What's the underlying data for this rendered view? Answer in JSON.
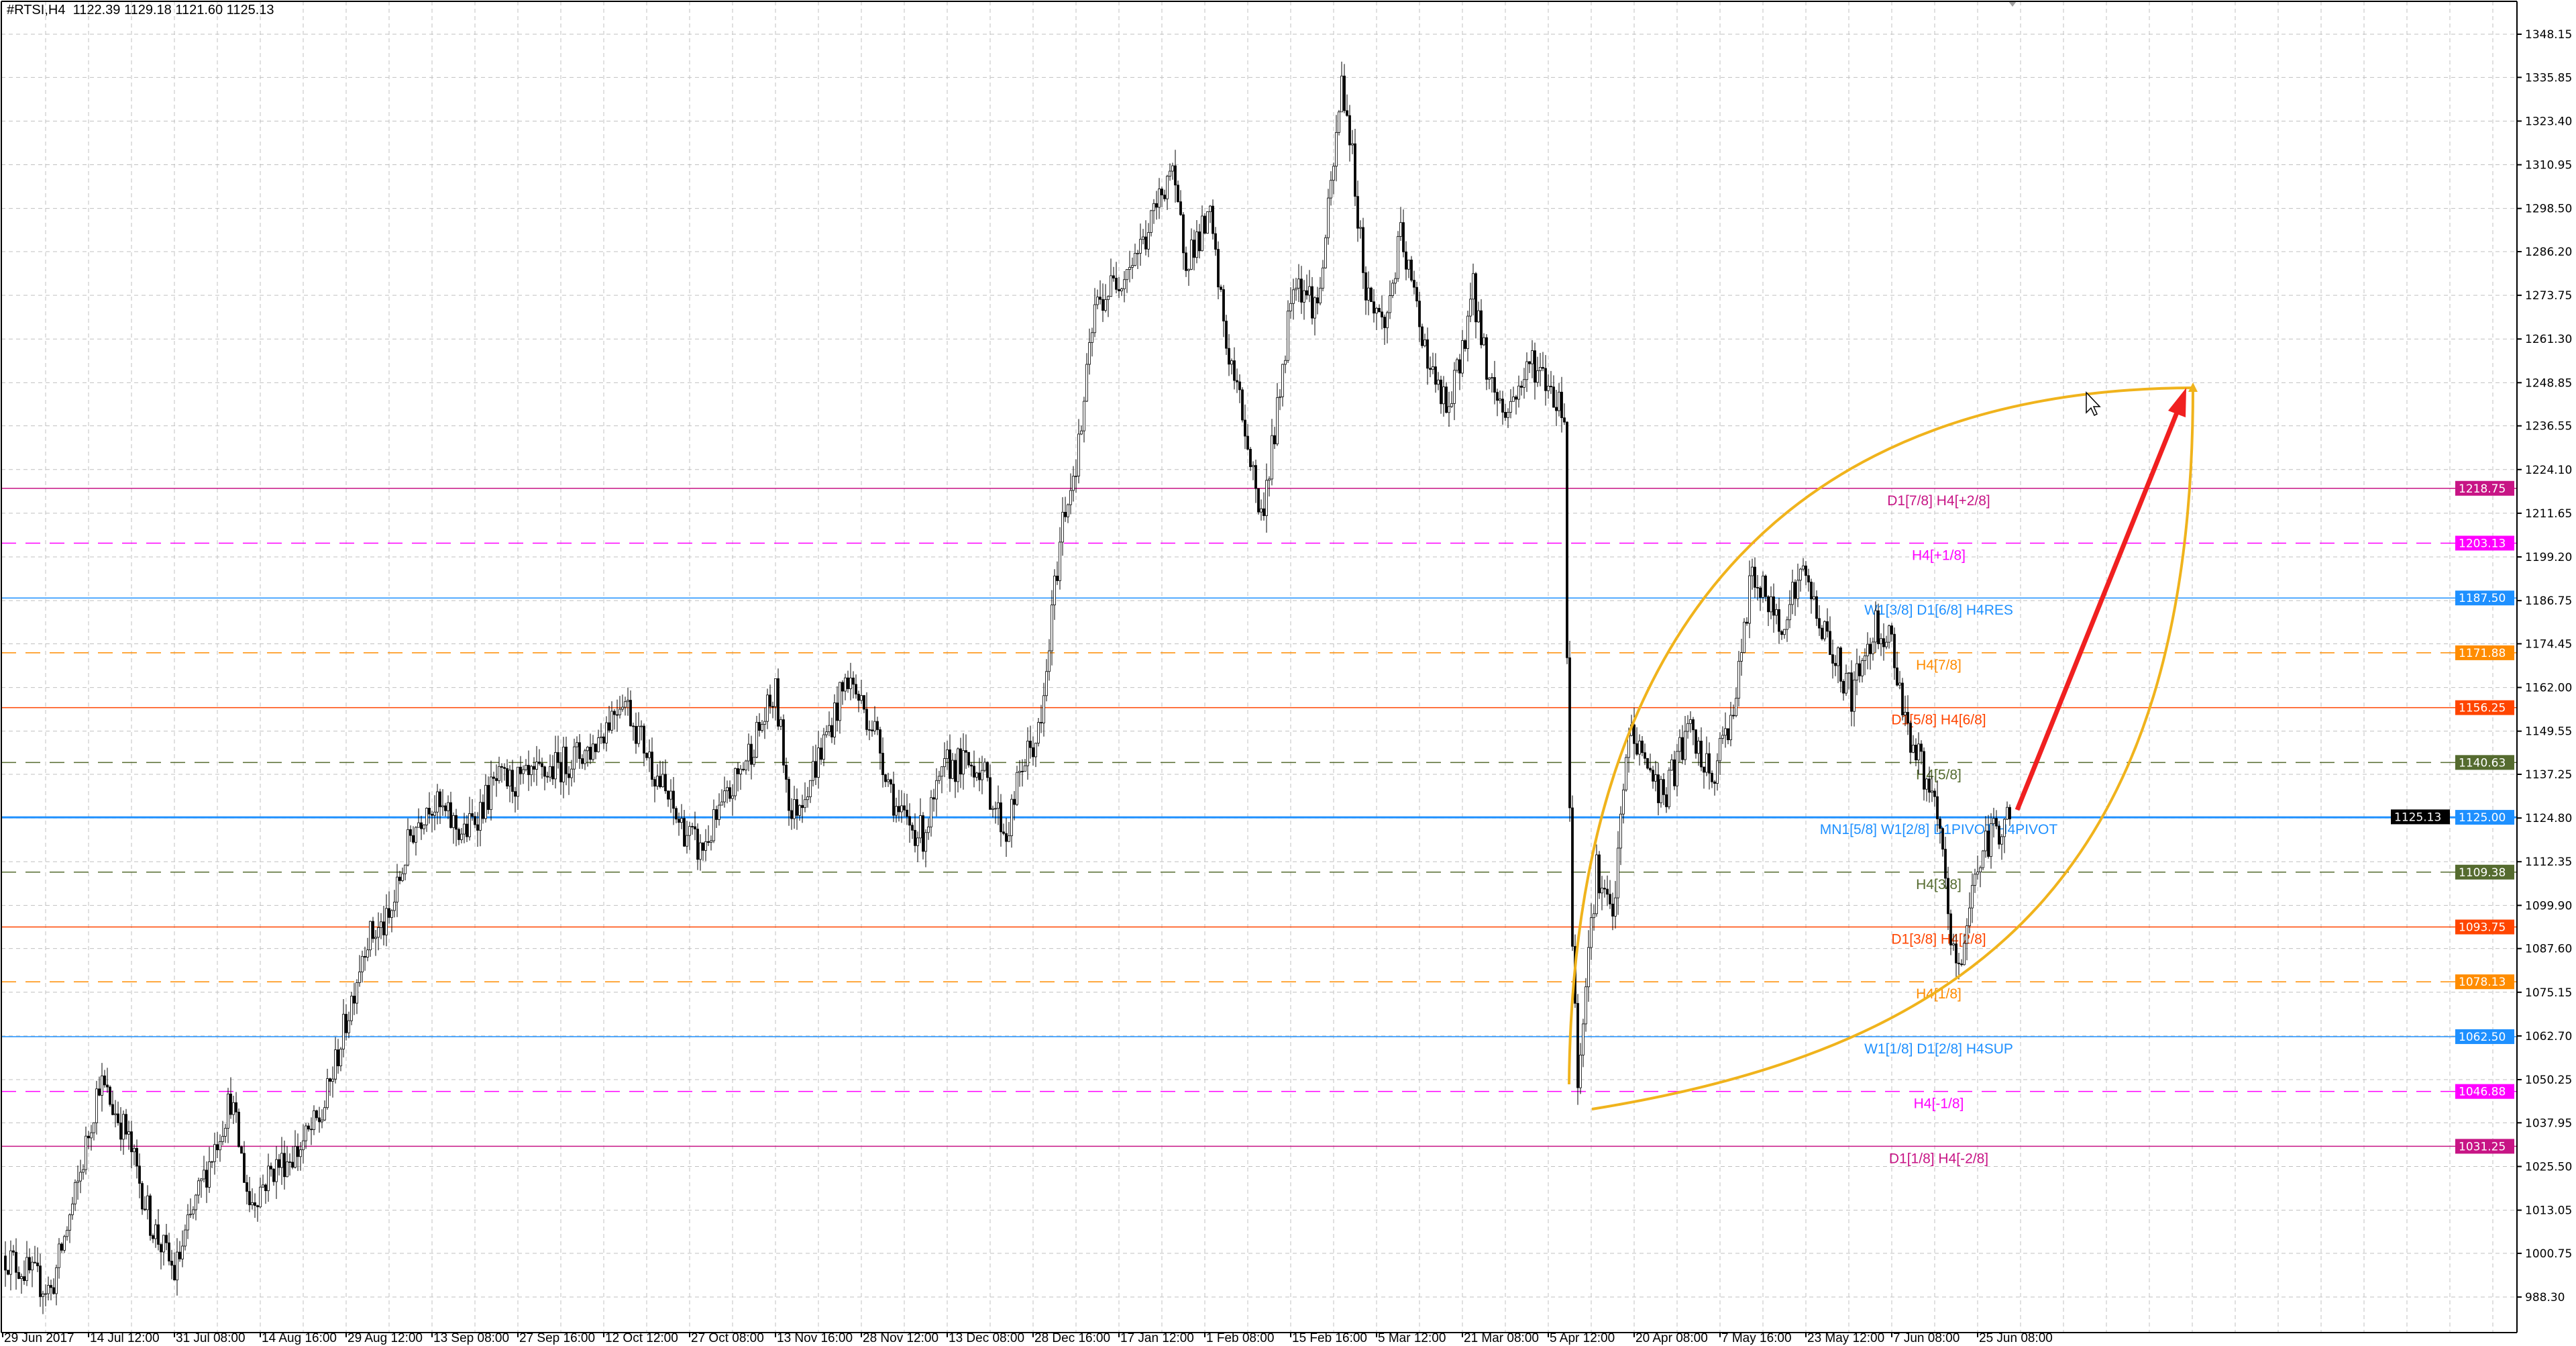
{
  "header": {
    "symbol": "#RTSI,H4",
    "ohlc": "1122.39 1129.18 1121.60 1125.13"
  },
  "colors": {
    "bull": "#ffffff",
    "bear": "#000000",
    "grid": "#c0c0c0",
    "curve": "#f0b31c",
    "arrow": "#f02020"
  },
  "price_axis": {
    "ticks": [
      "1348.15",
      "1335.85",
      "1323.40",
      "1310.95",
      "1298.50",
      "1286.20",
      "1273.75",
      "1261.30",
      "1248.85",
      "1236.55",
      "1224.10",
      "1211.65",
      "1199.20",
      "1186.75",
      "1174.45",
      "1162.00",
      "1149.55",
      "1137.25",
      "1124.80",
      "1112.35",
      "1099.90",
      "1087.60",
      "1075.15",
      "1062.70",
      "1050.25",
      "1037.95",
      "1025.50",
      "1013.05",
      "1000.75",
      "988.30"
    ],
    "current_price": "1125.13"
  },
  "time_axis": {
    "labels": [
      "29 Jun 2017",
      "14 Jul 12:00",
      "31 Jul 08:00",
      "14 Aug 16:00",
      "29 Aug 12:00",
      "13 Sep 08:00",
      "27 Sep 16:00",
      "12 Oct 12:00",
      "27 Oct 08:00",
      "13 Nov 16:00",
      "28 Nov 12:00",
      "13 Dec 08:00",
      "28 Dec 16:00",
      "17 Jan 12:00",
      "1 Feb 08:00",
      "15 Feb 16:00",
      "5 Mar 12:00",
      "21 Mar 08:00",
      "5 Apr 12:00",
      "20 Apr 08:00",
      "7 May 16:00",
      "23 May 12:00",
      "7 Jun 08:00",
      "25 Jun 08:00"
    ]
  },
  "levels": [
    {
      "price": 1218.75,
      "tag": "1218.75",
      "label": "D1[7/8] H4[+2/8]",
      "color": "#c71585",
      "style": "solid"
    },
    {
      "price": 1203.13,
      "tag": "1203.13",
      "label": "H4[+1/8]",
      "color": "#ff00ff",
      "style": "dashed"
    },
    {
      "price": 1187.5,
      "tag": "1187.50",
      "label": "W1[3/8] D1[6/8] H4RES",
      "color": "#1e90ff",
      "style": "solid"
    },
    {
      "price": 1171.88,
      "tag": "1171.88",
      "label": "H4[7/8]",
      "color": "#ff8c00",
      "style": "dashed"
    },
    {
      "price": 1156.25,
      "tag": "1156.25",
      "label": "D1[5/8] H4[6/8]",
      "color": "#ff4500",
      "style": "solid"
    },
    {
      "price": 1140.63,
      "tag": "1140.63",
      "label": "H4[5/8]",
      "color": "#556b2f",
      "style": "dashed"
    },
    {
      "price": 1125.0,
      "tag": "1125.00",
      "label": "MN1[5/8] W1[2/8] D1PIVOT H4PIVOT",
      "color": "#1e90ff",
      "style": "thick"
    },
    {
      "price": 1109.38,
      "tag": "1109.38",
      "label": "H4[3/8]",
      "color": "#556b2f",
      "style": "dashed"
    },
    {
      "price": 1093.75,
      "tag": "1093.75",
      "label": "D1[3/8] H4[2/8]",
      "color": "#ff4500",
      "style": "solid"
    },
    {
      "price": 1078.13,
      "tag": "1078.13",
      "label": "H4[1/8]",
      "color": "#ff8c00",
      "style": "dashed"
    },
    {
      "price": 1062.5,
      "tag": "1062.50",
      "label": "W1[1/8] D1[2/8] H4SUP",
      "color": "#1e90ff",
      "style": "solid"
    },
    {
      "price": 1046.88,
      "tag": "1046.88",
      "label": "H4[-1/8]",
      "color": "#ff00ff",
      "style": "dashed"
    },
    {
      "price": 1031.25,
      "tag": "1031.25",
      "label": "D1[1/8] H4[-2/8]",
      "color": "#c71585",
      "style": "solid"
    }
  ],
  "price_path_approx": [
    [
      1,
      1000
    ],
    [
      18,
      990
    ],
    [
      28,
      1020
    ],
    [
      36,
      1050
    ],
    [
      46,
      1035
    ],
    [
      55,
      1010
    ],
    [
      64,
      995
    ],
    [
      74,
      1020
    ],
    [
      85,
      1045
    ],
    [
      92,
      1015
    ],
    [
      101,
      1025
    ],
    [
      110,
      1030
    ],
    [
      119,
      1040
    ],
    [
      129,
      1070
    ],
    [
      135,
      1090
    ],
    [
      144,
      1095
    ],
    [
      152,
      1120
    ],
    [
      159,
      1130
    ],
    [
      172,
      1120
    ],
    [
      184,
      1135
    ],
    [
      196,
      1135
    ],
    [
      208,
      1140
    ],
    [
      220,
      1145
    ],
    [
      231,
      1160
    ],
    [
      242,
      1140
    ],
    [
      251,
      1125
    ],
    [
      260,
      1115
    ],
    [
      270,
      1130
    ],
    [
      282,
      1150
    ],
    [
      288,
      1160
    ],
    [
      294,
      1125
    ],
    [
      303,
      1140
    ],
    [
      315,
      1165
    ],
    [
      325,
      1150
    ],
    [
      334,
      1125
    ],
    [
      343,
      1120
    ],
    [
      352,
      1140
    ],
    [
      364,
      1140
    ],
    [
      374,
      1120
    ],
    [
      380,
      1140
    ],
    [
      387,
      1150
    ],
    [
      392,
      1190
    ],
    [
      395,
      1210
    ],
    [
      401,
      1230
    ],
    [
      407,
      1270
    ],
    [
      417,
      1280
    ],
    [
      426,
      1290
    ],
    [
      435,
      1310
    ],
    [
      441,
      1285
    ],
    [
      450,
      1295
    ],
    [
      456,
      1260
    ],
    [
      462,
      1240
    ],
    [
      469,
      1210
    ],
    [
      475,
      1240
    ],
    [
      481,
      1280
    ],
    [
      490,
      1270
    ],
    [
      496,
      1310
    ],
    [
      499,
      1335
    ],
    [
      502,
      1320
    ],
    [
      508,
      1275
    ],
    [
      515,
      1265
    ],
    [
      521,
      1290
    ],
    [
      527,
      1270
    ],
    [
      533,
      1250
    ],
    [
      539,
      1240
    ],
    [
      548,
      1275
    ],
    [
      554,
      1250
    ],
    [
      560,
      1240
    ],
    [
      570,
      1255
    ],
    [
      579,
      1245
    ],
    [
      582,
      1240
    ],
    [
      583,
      1170
    ],
    [
      585,
      1090
    ],
    [
      587,
      1050
    ],
    [
      590,
      1080
    ],
    [
      594,
      1110
    ],
    [
      600,
      1095
    ],
    [
      606,
      1150
    ],
    [
      613,
      1140
    ],
    [
      619,
      1130
    ],
    [
      628,
      1150
    ],
    [
      637,
      1135
    ],
    [
      646,
      1160
    ],
    [
      652,
      1195
    ],
    [
      662,
      1180
    ],
    [
      671,
      1195
    ],
    [
      680,
      1175
    ],
    [
      689,
      1160
    ],
    [
      698,
      1180
    ],
    [
      704,
      1175
    ],
    [
      710,
      1150
    ],
    [
      717,
      1135
    ],
    [
      722,
      1120
    ],
    [
      726,
      1090
    ],
    [
      729,
      1080
    ],
    [
      735,
      1110
    ],
    [
      741,
      1120
    ],
    [
      748,
      1125
    ]
  ]
}
